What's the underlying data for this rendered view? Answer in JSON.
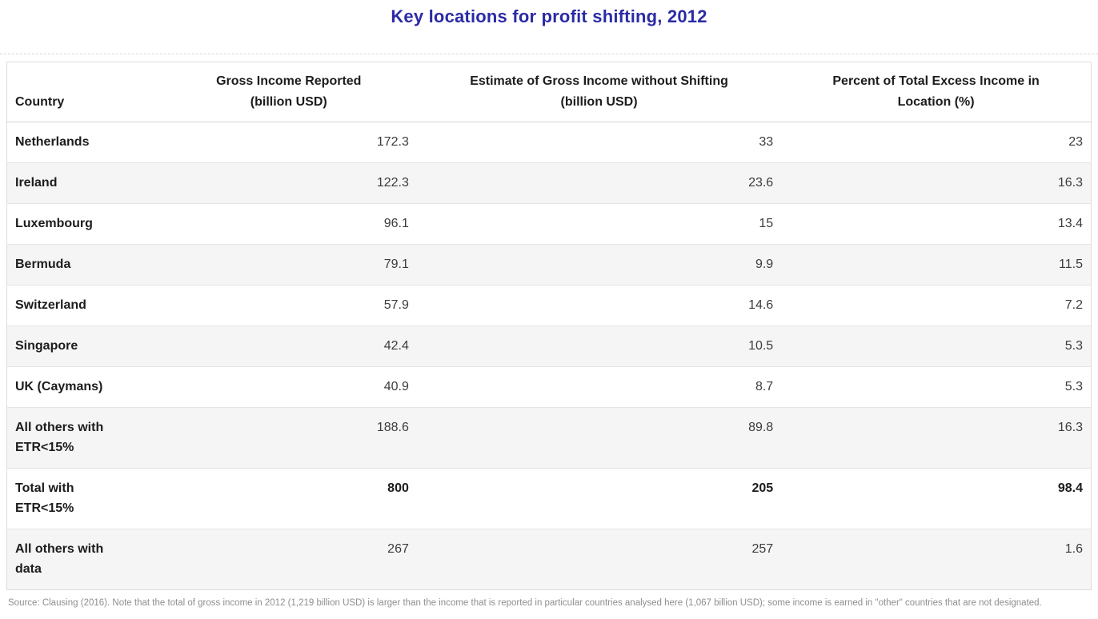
{
  "chart_data": {
    "type": "table",
    "title": "Key locations for profit shifting, 2012",
    "columns": [
      {
        "label": "Country",
        "align": "left"
      },
      {
        "label": "Gross Income Reported\n(billion USD)",
        "align": "right"
      },
      {
        "label": "Estimate of Gross Income without Shifting\n(billion USD)",
        "align": "right"
      },
      {
        "label": "Percent of Total Excess Income in\nLocation (%)",
        "align": "right"
      }
    ],
    "rows": [
      {
        "country": "Netherlands",
        "gross_income": "172.3",
        "estimate": "33",
        "percent": "23"
      },
      {
        "country": "Ireland",
        "gross_income": "122.3",
        "estimate": "23.6",
        "percent": "16.3"
      },
      {
        "country": "Luxembourg",
        "gross_income": "96.1",
        "estimate": "15",
        "percent": "13.4"
      },
      {
        "country": "Bermuda",
        "gross_income": "79.1",
        "estimate": "9.9",
        "percent": "11.5"
      },
      {
        "country": "Switzerland",
        "gross_income": "57.9",
        "estimate": "14.6",
        "percent": "7.2"
      },
      {
        "country": "Singapore",
        "gross_income": "42.4",
        "estimate": "10.5",
        "percent": "5.3"
      },
      {
        "country": "UK (Caymans)",
        "gross_income": "40.9",
        "estimate": "8.7",
        "percent": "5.3"
      },
      {
        "country": "All others with\nETR<15%",
        "gross_income": "188.6",
        "estimate": "89.8",
        "percent": "16.3"
      },
      {
        "country": "Total with\nETR<15%",
        "gross_income": "800",
        "estimate": "205",
        "percent": "98.4",
        "emphasis": true
      },
      {
        "country": "All others with\ndata",
        "gross_income": "267",
        "estimate": "257",
        "percent": "1.6"
      }
    ],
    "layout": {
      "alt_row_shading": true,
      "header_position": "top"
    }
  },
  "source_note": "Source: Clausing (2016). Note that the total of gross income in 2012 (1,219 billion USD) is larger than the income that is reported in particular countries analysed here (1,067 billion USD); some income is earned in \"other\" countries that are not designated.",
  "colors": {
    "title": "#2b2ba6",
    "header_text": "#1c1c1c",
    "number_text": "#3c3c3c",
    "alt_row_bg": "#f5f5f5",
    "row_border": "#e4e4e4",
    "outer_border": "#dcdcdc",
    "source_text": "#8e8e8e"
  }
}
